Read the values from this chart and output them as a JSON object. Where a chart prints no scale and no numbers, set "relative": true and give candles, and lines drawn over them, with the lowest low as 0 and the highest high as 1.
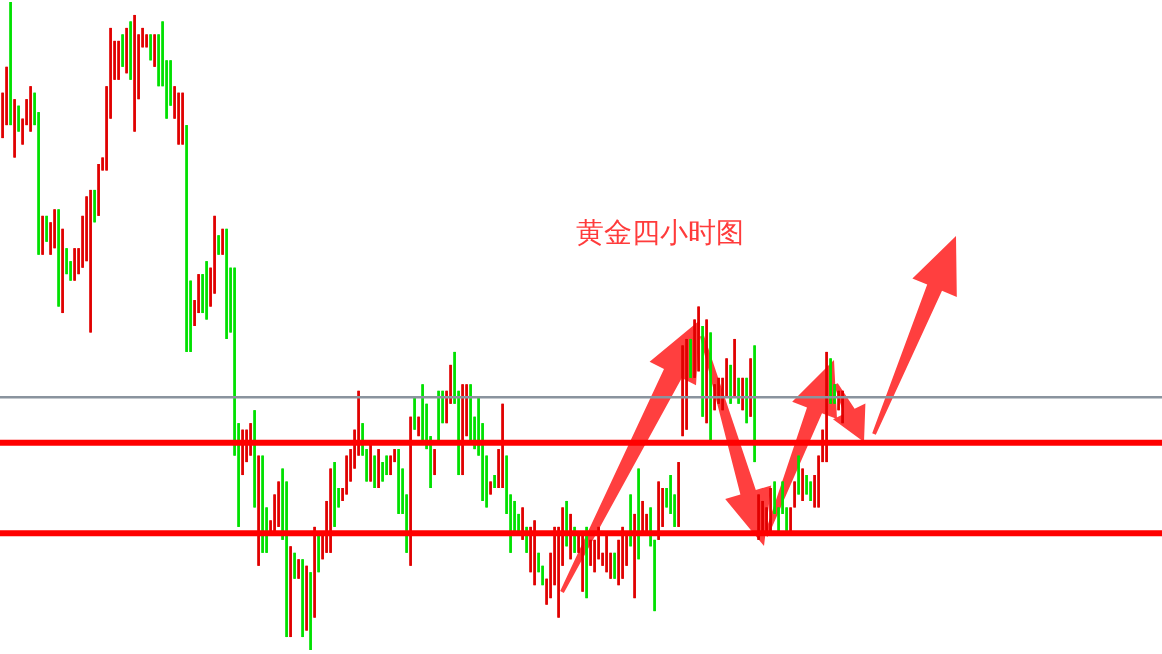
{
  "chart_data": {
    "type": "candlestick",
    "title": "黄金四小时图",
    "relative": true,
    "categories": [
      null,
      null,
      null,
      null,
      null,
      null,
      null,
      null,
      null,
      null,
      null,
      null,
      null,
      null,
      null,
      null,
      null,
      null,
      null,
      null,
      null,
      null,
      null,
      null,
      null,
      null,
      null,
      null,
      null,
      null,
      null,
      null,
      null,
      null,
      null,
      null,
      null,
      null,
      null,
      null,
      null,
      null,
      null,
      null,
      null,
      null,
      null,
      null,
      null,
      null,
      null,
      null,
      null,
      null,
      null,
      null,
      null,
      null,
      null,
      null,
      null,
      null,
      null,
      null,
      null,
      null,
      null,
      null,
      null,
      null,
      null,
      null,
      null,
      null,
      null,
      null,
      null,
      null,
      null,
      null,
      null,
      null,
      null,
      null,
      null,
      null,
      null,
      null,
      null,
      null,
      null,
      null,
      null,
      null,
      null,
      null,
      null,
      null,
      null,
      null,
      null,
      null,
      null,
      null,
      null,
      null,
      null,
      null,
      null,
      null,
      null,
      null,
      null,
      null,
      null,
      null,
      null,
      null,
      null,
      null,
      null,
      null,
      null,
      null,
      null,
      null,
      null,
      null,
      null,
      null,
      null,
      null,
      null,
      null,
      null,
      null,
      null,
      null,
      null,
      null,
      null,
      null,
      null,
      null,
      null,
      null,
      null,
      null,
      null,
      null,
      null,
      null,
      null,
      null,
      null,
      null,
      null,
      null,
      null,
      null,
      null,
      null,
      null,
      null,
      null,
      null,
      null,
      null,
      null,
      null,
      null,
      null,
      null,
      null,
      null,
      null,
      null,
      null,
      null,
      null,
      null,
      null,
      null,
      null,
      null,
      null,
      null,
      null,
      null,
      null,
      null,
      null,
      null,
      null,
      null,
      null,
      null,
      null,
      null,
      null,
      null,
      null,
      null,
      null,
      null,
      null,
      null,
      null,
      null,
      null,
      null
    ],
    "ohlc": [
      [
        0.86,
        0.86,
        0.79,
        0.79
      ],
      [
        0.9,
        0.9,
        0.81,
        0.81
      ],
      [
        0.81,
        1.0,
        0.81,
        1.0
      ],
      [
        0.85,
        0.85,
        0.76,
        0.76
      ],
      [
        0.8,
        0.84,
        0.8,
        0.84
      ],
      [
        0.82,
        0.82,
        0.78,
        0.78
      ],
      [
        0.85,
        0.85,
        0.81,
        0.81
      ],
      [
        0.87,
        0.87,
        0.8,
        0.8
      ],
      [
        0.81,
        0.86,
        0.81,
        0.86
      ],
      [
        0.61,
        0.83,
        0.61,
        0.83
      ],
      [
        0.67,
        0.67,
        0.61,
        0.61
      ],
      [
        0.63,
        0.67,
        0.63,
        0.67
      ],
      [
        0.66,
        0.66,
        0.61,
        0.61
      ],
      [
        0.68,
        0.68,
        0.62,
        0.62
      ],
      [
        0.53,
        0.68,
        0.53,
        0.68
      ],
      [
        0.65,
        0.65,
        0.52,
        0.52
      ],
      [
        0.58,
        0.62,
        0.58,
        0.62
      ],
      [
        0.57,
        0.6,
        0.57,
        0.6
      ],
      [
        0.62,
        0.62,
        0.57,
        0.57
      ],
      [
        0.62,
        0.62,
        0.58,
        0.58
      ],
      [
        0.67,
        0.67,
        0.59,
        0.59
      ],
      [
        0.7,
        0.7,
        0.6,
        0.6
      ],
      [
        0.71,
        0.71,
        0.49,
        0.49
      ],
      [
        0.66,
        0.71,
        0.66,
        0.71
      ],
      [
        0.75,
        0.75,
        0.67,
        0.67
      ],
      [
        0.76,
        0.76,
        0.74,
        0.74
      ],
      [
        0.87,
        0.87,
        0.74,
        0.74
      ],
      [
        0.96,
        0.96,
        0.82,
        0.82
      ],
      [
        0.94,
        0.94,
        0.88,
        0.88
      ],
      [
        0.94,
        0.94,
        0.88,
        0.88
      ],
      [
        0.9,
        0.95,
        0.9,
        0.95
      ],
      [
        0.96,
        0.96,
        0.89,
        0.89
      ],
      [
        0.88,
        0.97,
        0.88,
        0.97
      ],
      [
        0.98,
        0.98,
        0.8,
        0.8
      ],
      [
        0.95,
        0.95,
        0.85,
        0.85
      ],
      [
        0.96,
        0.96,
        0.93,
        0.93
      ],
      [
        0.95,
        0.95,
        0.93,
        0.93
      ],
      [
        0.91,
        0.95,
        0.91,
        0.95
      ],
      [
        0.95,
        0.95,
        0.9,
        0.9
      ],
      [
        0.87,
        0.95,
        0.87,
        0.95
      ],
      [
        0.87,
        0.97,
        0.87,
        0.97
      ],
      [
        0.82,
        0.91,
        0.82,
        0.91
      ],
      [
        0.84,
        0.91,
        0.84,
        0.91
      ],
      [
        0.87,
        0.87,
        0.82,
        0.82
      ],
      [
        0.86,
        0.86,
        0.78,
        0.78
      ],
      [
        0.86,
        0.86,
        0.78,
        0.78
      ],
      [
        0.46,
        0.81,
        0.46,
        0.81
      ],
      [
        0.46,
        0.57,
        0.46,
        0.57
      ],
      [
        0.54,
        0.54,
        0.5,
        0.5
      ],
      [
        0.58,
        0.58,
        0.52,
        0.52
      ],
      [
        0.52,
        0.58,
        0.52,
        0.58
      ],
      [
        0.51,
        0.6,
        0.51,
        0.6
      ],
      [
        0.59,
        0.59,
        0.53,
        0.53
      ],
      [
        0.67,
        0.67,
        0.55,
        0.55
      ],
      [
        0.61,
        0.64,
        0.61,
        0.64
      ],
      [
        0.65,
        0.65,
        0.61,
        0.61
      ],
      [
        0.48,
        0.65,
        0.48,
        0.65
      ],
      [
        0.49,
        0.59,
        0.49,
        0.59
      ],
      [
        0.3,
        0.59,
        0.3,
        0.59
      ],
      [
        0.19,
        0.35,
        0.19,
        0.35
      ],
      [
        0.34,
        0.34,
        0.27,
        0.27
      ],
      [
        0.34,
        0.34,
        0.29,
        0.29
      ],
      [
        0.35,
        0.35,
        0.3,
        0.3
      ],
      [
        0.22,
        0.37,
        0.22,
        0.37
      ],
      [
        0.3,
        0.3,
        0.13,
        0.13
      ],
      [
        0.15,
        0.3,
        0.15,
        0.3
      ],
      [
        0.15,
        0.22,
        0.15,
        0.22
      ],
      [
        0.2,
        0.2,
        0.18,
        0.18
      ],
      [
        0.24,
        0.24,
        0.18,
        0.18
      ],
      [
        0.26,
        0.26,
        0.19,
        0.19
      ],
      [
        0.17,
        0.28,
        0.17,
        0.28
      ],
      [
        0.02,
        0.26,
        0.02,
        0.26
      ],
      [
        0.16,
        0.16,
        0.02,
        0.02
      ],
      [
        0.11,
        0.15,
        0.11,
        0.15
      ],
      [
        0.14,
        0.14,
        0.11,
        0.11
      ],
      [
        0.02,
        0.14,
        0.02,
        0.14
      ],
      [
        0.13,
        0.13,
        0.03,
        0.03
      ],
      [
        0.0,
        0.12,
        0.0,
        0.12
      ],
      [
        0.19,
        0.19,
        0.05,
        0.05
      ],
      [
        0.12,
        0.18,
        0.12,
        0.18
      ],
      [
        0.18,
        0.18,
        0.14,
        0.14
      ],
      [
        0.23,
        0.23,
        0.15,
        0.15
      ],
      [
        0.28,
        0.28,
        0.15,
        0.15
      ],
      [
        0.19,
        0.29,
        0.19,
        0.29
      ],
      [
        0.22,
        0.25,
        0.22,
        0.25
      ],
      [
        0.25,
        0.25,
        0.23,
        0.23
      ],
      [
        0.3,
        0.3,
        0.24,
        0.24
      ],
      [
        0.31,
        0.31,
        0.26,
        0.26
      ],
      [
        0.34,
        0.34,
        0.28,
        0.28
      ],
      [
        0.4,
        0.4,
        0.3,
        0.3
      ],
      [
        0.3,
        0.35,
        0.3,
        0.35
      ],
      [
        0.26,
        0.31,
        0.26,
        0.31
      ],
      [
        0.32,
        0.32,
        0.26,
        0.26
      ],
      [
        0.25,
        0.3,
        0.25,
        0.3
      ],
      [
        0.31,
        0.31,
        0.25,
        0.25
      ],
      [
        0.26,
        0.29,
        0.26,
        0.29
      ],
      [
        0.27,
        0.3,
        0.27,
        0.3
      ],
      [
        0.3,
        0.3,
        0.27,
        0.27
      ],
      [
        0.31,
        0.31,
        0.29,
        0.29
      ],
      [
        0.21,
        0.31,
        0.21,
        0.31
      ],
      [
        0.21,
        0.28,
        0.21,
        0.28
      ],
      [
        0.15,
        0.24,
        0.15,
        0.24
      ],
      [
        0.36,
        0.36,
        0.13,
        0.13
      ],
      [
        0.34,
        0.39,
        0.34,
        0.39
      ],
      [
        0.36,
        0.36,
        0.33,
        0.33
      ],
      [
        0.32,
        0.41,
        0.32,
        0.41
      ],
      [
        0.31,
        0.38,
        0.31,
        0.38
      ],
      [
        0.25,
        0.33,
        0.25,
        0.33
      ],
      [
        0.31,
        0.31,
        0.27,
        0.27
      ],
      [
        0.32,
        0.4,
        0.32,
        0.4
      ],
      [
        0.35,
        0.4,
        0.35,
        0.4
      ],
      [
        0.4,
        0.4,
        0.35,
        0.35
      ],
      [
        0.44,
        0.44,
        0.38,
        0.38
      ],
      [
        0.38,
        0.46,
        0.38,
        0.46
      ],
      [
        0.27,
        0.4,
        0.27,
        0.4
      ],
      [
        0.41,
        0.41,
        0.27,
        0.27
      ],
      [
        0.41,
        0.41,
        0.33,
        0.33
      ],
      [
        0.32,
        0.41,
        0.32,
        0.41
      ],
      [
        0.31,
        0.36,
        0.31,
        0.36
      ],
      [
        0.3,
        0.39,
        0.3,
        0.39
      ],
      [
        0.23,
        0.35,
        0.23,
        0.35
      ],
      [
        0.22,
        0.3,
        0.22,
        0.3
      ],
      [
        0.26,
        0.26,
        0.24,
        0.24
      ],
      [
        0.25,
        0.27,
        0.25,
        0.27
      ],
      [
        0.31,
        0.31,
        0.25,
        0.25
      ],
      [
        0.38,
        0.38,
        0.25,
        0.25
      ],
      [
        0.21,
        0.3,
        0.21,
        0.3
      ],
      [
        0.15,
        0.24,
        0.15,
        0.24
      ],
      [
        0.18,
        0.23,
        0.18,
        0.23
      ],
      [
        0.18,
        0.21,
        0.18,
        0.21
      ],
      [
        0.22,
        0.22,
        0.17,
        0.17
      ],
      [
        0.15,
        0.19,
        0.15,
        0.19
      ],
      [
        0.19,
        0.19,
        0.12,
        0.12
      ],
      [
        0.2,
        0.2,
        0.1,
        0.1
      ],
      [
        0.12,
        0.15,
        0.12,
        0.15
      ],
      [
        0.1,
        0.13,
        0.1,
        0.13
      ],
      [
        0.11,
        0.11,
        0.07,
        0.07
      ],
      [
        0.15,
        0.15,
        0.08,
        0.08
      ],
      [
        0.19,
        0.19,
        0.1,
        0.1
      ],
      [
        0.19,
        0.19,
        0.05,
        0.05
      ],
      [
        0.22,
        0.22,
        0.13,
        0.13
      ],
      [
        0.16,
        0.23,
        0.16,
        0.23
      ],
      [
        0.21,
        0.21,
        0.14,
        0.14
      ],
      [
        0.15,
        0.19,
        0.15,
        0.19
      ],
      [
        0.18,
        0.18,
        0.15,
        0.15
      ],
      [
        0.18,
        0.18,
        0.09,
        0.09
      ],
      [
        0.08,
        0.19,
        0.08,
        0.19
      ],
      [
        0.17,
        0.17,
        0.13,
        0.13
      ],
      [
        0.17,
        0.17,
        0.12,
        0.12
      ],
      [
        0.19,
        0.19,
        0.14,
        0.14
      ],
      [
        0.15,
        0.15,
        0.13,
        0.13
      ],
      [
        0.18,
        0.18,
        0.12,
        0.12
      ],
      [
        0.15,
        0.15,
        0.11,
        0.11
      ],
      [
        0.11,
        0.15,
        0.11,
        0.15
      ],
      [
        0.17,
        0.17,
        0.1,
        0.1
      ],
      [
        0.19,
        0.19,
        0.11,
        0.11
      ],
      [
        0.18,
        0.18,
        0.13,
        0.13
      ],
      [
        0.16,
        0.24,
        0.16,
        0.24
      ],
      [
        0.21,
        0.21,
        0.08,
        0.08
      ],
      [
        0.14,
        0.28,
        0.14,
        0.28
      ],
      [
        0.23,
        0.23,
        0.18,
        0.18
      ],
      [
        0.21,
        0.21,
        0.18,
        0.18
      ],
      [
        0.16,
        0.22,
        0.16,
        0.22
      ],
      [
        0.06,
        0.17,
        0.06,
        0.17
      ],
      [
        0.26,
        0.26,
        0.17,
        0.17
      ],
      [
        0.25,
        0.25,
        0.19,
        0.19
      ],
      [
        0.22,
        0.25,
        0.22,
        0.25
      ],
      [
        0.21,
        0.27,
        0.21,
        0.27
      ],
      [
        0.19,
        0.24,
        0.19,
        0.24
      ],
      [
        0.29,
        0.29,
        0.19,
        0.19
      ],
      [
        0.47,
        0.47,
        0.33,
        0.33
      ],
      [
        0.48,
        0.48,
        0.34,
        0.34
      ],
      [
        0.42,
        0.48,
        0.42,
        0.48
      ],
      [
        0.51,
        0.51,
        0.42,
        0.42
      ],
      [
        0.53,
        0.53,
        0.43,
        0.43
      ],
      [
        0.36,
        0.5,
        0.36,
        0.5
      ],
      [
        0.51,
        0.51,
        0.35,
        0.35
      ],
      [
        0.32,
        0.49,
        0.32,
        0.49
      ],
      [
        0.41,
        0.41,
        0.37,
        0.37
      ],
      [
        0.42,
        0.42,
        0.38,
        0.38
      ],
      [
        0.42,
        0.42,
        0.37,
        0.37
      ],
      [
        0.45,
        0.45,
        0.39,
        0.39
      ],
      [
        0.38,
        0.44,
        0.38,
        0.44
      ],
      [
        0.48,
        0.48,
        0.39,
        0.39
      ],
      [
        0.38,
        0.42,
        0.38,
        0.42
      ],
      [
        0.42,
        0.42,
        0.37,
        0.37
      ],
      [
        0.35,
        0.42,
        0.35,
        0.42
      ],
      [
        0.45,
        0.45,
        0.36,
        0.36
      ],
      [
        0.29,
        0.47,
        0.29,
        0.47
      ],
      [
        0.24,
        0.24,
        0.17,
        0.17
      ],
      [
        0.23,
        0.23,
        0.18,
        0.18
      ],
      [
        0.22,
        0.22,
        0.18,
        0.18
      ],
      [
        0.25,
        0.25,
        0.18,
        0.18
      ],
      [
        0.21,
        0.26,
        0.21,
        0.26
      ],
      [
        0.18,
        0.22,
        0.18,
        0.22
      ],
      [
        0.21,
        0.26,
        0.21,
        0.26
      ],
      [
        0.18,
        0.22,
        0.18,
        0.22
      ],
      [
        0.22,
        0.22,
        0.18,
        0.18
      ],
      [
        0.26,
        0.26,
        0.22,
        0.22
      ],
      [
        0.24,
        0.3,
        0.24,
        0.3
      ],
      [
        0.28,
        0.28,
        0.23,
        0.23
      ],
      [
        0.24,
        0.27,
        0.24,
        0.27
      ],
      [
        0.23,
        0.26,
        0.23,
        0.26
      ],
      [
        0.27,
        0.27,
        0.22,
        0.22
      ],
      [
        0.3,
        0.3,
        0.22,
        0.22
      ],
      [
        0.34,
        0.34,
        0.29,
        0.29
      ],
      [
        0.46,
        0.46,
        0.29,
        0.29
      ],
      [
        0.38,
        0.45,
        0.38,
        0.45
      ],
      [
        0.38,
        0.41,
        0.38,
        0.41
      ],
      [
        0.4,
        0.4,
        0.37,
        0.37
      ],
      [
        0.4,
        0.4,
        0.35,
        0.35
      ]
    ],
    "colors": [
      "#e00000",
      "#e00000",
      "#00e000",
      "#e00000",
      "#00e000",
      "#e00000",
      "#e00000",
      "#e00000",
      "#00e000",
      "#00e000",
      "#e00000",
      "#00e000",
      "#e00000",
      "#e00000",
      "#00e000",
      "#e00000",
      "#00e000",
      "#00e000",
      "#e00000",
      "#e00000",
      "#e00000",
      "#e00000",
      "#e00000",
      "#00e000",
      "#e00000",
      "#e00000",
      "#e00000",
      "#e00000",
      "#e00000",
      "#e00000",
      "#00e000",
      "#e00000",
      "#00e000",
      "#e00000",
      "#e00000",
      "#e00000",
      "#e00000",
      "#00e000",
      "#e00000",
      "#00e000",
      "#00e000",
      "#00e000",
      "#00e000",
      "#e00000",
      "#e00000",
      "#e00000",
      "#00e000",
      "#00e000",
      "#e00000",
      "#e00000",
      "#00e000",
      "#00e000",
      "#e00000",
      "#e00000",
      "#00e000",
      "#e00000",
      "#00e000",
      "#00e000",
      "#00e000",
      "#00e000",
      "#e00000",
      "#e00000",
      "#e00000",
      "#00e000",
      "#e00000",
      "#00e000",
      "#00e000",
      "#e00000",
      "#e00000",
      "#e00000",
      "#00e000",
      "#00e000",
      "#e00000",
      "#00e000",
      "#e00000",
      "#00e000",
      "#e00000",
      "#00e000",
      "#e00000",
      "#00e000",
      "#e00000",
      "#e00000",
      "#e00000",
      "#00e000",
      "#00e000",
      "#e00000",
      "#e00000",
      "#e00000",
      "#e00000",
      "#e00000",
      "#00e000",
      "#00e000",
      "#e00000",
      "#00e000",
      "#e00000",
      "#00e000",
      "#00e000",
      "#e00000",
      "#e00000",
      "#00e000",
      "#00e000",
      "#00e000",
      "#e00000",
      "#00e000",
      "#e00000",
      "#00e000",
      "#00e000",
      "#00e000",
      "#e00000",
      "#00e000",
      "#00e000",
      "#e00000",
      "#e00000",
      "#00e000",
      "#00e000",
      "#e00000",
      "#e00000",
      "#00e000",
      "#00e000",
      "#00e000",
      "#00e000",
      "#00e000",
      "#e00000",
      "#00e000",
      "#e00000",
      "#e00000",
      "#00e000",
      "#00e000",
      "#00e000",
      "#00e000",
      "#e00000",
      "#00e000",
      "#e00000",
      "#e00000",
      "#00e000",
      "#00e000",
      "#e00000",
      "#e00000",
      "#e00000",
      "#e00000",
      "#e00000",
      "#00e000",
      "#e00000",
      "#00e000",
      "#e00000",
      "#e00000",
      "#00e000",
      "#e00000",
      "#e00000",
      "#e00000",
      "#e00000",
      "#e00000",
      "#e00000",
      "#00e000",
      "#e00000",
      "#e00000",
      "#e00000",
      "#00e000",
      "#e00000",
      "#00e000",
      "#e00000",
      "#e00000",
      "#00e000",
      "#00e000",
      "#e00000",
      "#e00000",
      "#00e000",
      "#00e000",
      "#00e000",
      "#e00000",
      "#e00000",
      "#e00000",
      "#00e000",
      "#e00000",
      "#e00000",
      "#00e000",
      "#e00000",
      "#00e000",
      "#e00000",
      "#e00000",
      "#e00000",
      "#e00000",
      "#00e000",
      "#e00000",
      "#00e000",
      "#e00000",
      "#00e000",
      "#e00000",
      "#00e000",
      "#e00000",
      "#e00000",
      "#e00000",
      "#e00000",
      "#00e000",
      "#00e000",
      "#00e000",
      "#00e000",
      "#e00000",
      "#e00000",
      "#00e000",
      "#e00000",
      "#00e000",
      "#00e000",
      "#e00000",
      "#e00000",
      "#e00000",
      "#e00000",
      "#00e000",
      "#00e000",
      "#e00000",
      "#e00000"
    ],
    "ref_lines": [
      {
        "axis": "y",
        "value": 0.39,
        "color": "#8a949e"
      },
      {
        "axis": "y",
        "value": 0.32,
        "color": "#ff0000"
      },
      {
        "axis": "y",
        "value": 0.18,
        "color": "#ff0000"
      }
    ]
  }
}
